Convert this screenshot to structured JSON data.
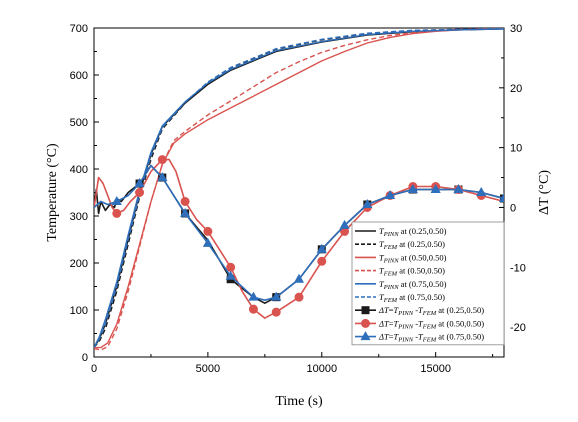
{
  "chart_data": {
    "type": "line",
    "xlabel": "Time (s)",
    "ylabel_left": "Temperature (°C)",
    "ylabel_right": "ΔT (°C)",
    "xlim": [
      0,
      18000
    ],
    "ylim_left": [
      0,
      700
    ],
    "ylim_right": [
      -25,
      30
    ],
    "x_ticks": [
      0,
      5000,
      10000,
      15000
    ],
    "y_ticks_left": [
      0,
      100,
      200,
      300,
      400,
      500,
      600,
      700
    ],
    "y_ticks_right": [
      -20,
      -10,
      0,
      10,
      20,
      30
    ],
    "legend_position": "bottom-right",
    "colors": {
      "black": "#1a1a1a",
      "red": "#d9534f",
      "blue": "#2f6eba"
    },
    "series": [
      {
        "name": "T_PINN at (0.25,0.50)",
        "legend_label": "at (0.25,0.50)",
        "sym": "PINN",
        "axis": "left",
        "color": "#1a1a1a",
        "style": "solid",
        "marker": "none",
        "x": [
          0,
          250,
          500,
          1000,
          1500,
          2000,
          2500,
          3000,
          4000,
          5000,
          6000,
          8000,
          10000,
          12000,
          14000,
          16000,
          18000
        ],
        "y": [
          20,
          40,
          70,
          150,
          250,
          350,
          430,
          490,
          540,
          580,
          610,
          650,
          670,
          685,
          692,
          696,
          698
        ]
      },
      {
        "name": "T_FEM at (0.25,0.50)",
        "legend_label": "at (0.25,0.50)",
        "sym": "FEM",
        "axis": "left",
        "color": "#1a1a1a",
        "style": "dash",
        "marker": "none",
        "x": [
          0,
          250,
          500,
          1000,
          1500,
          2000,
          2500,
          3000,
          4000,
          5000,
          6000,
          8000,
          10000,
          12000,
          14000,
          16000,
          18000
        ],
        "y": [
          20,
          35,
          60,
          140,
          240,
          340,
          420,
          485,
          540,
          585,
          615,
          655,
          675,
          688,
          694,
          697,
          699
        ]
      },
      {
        "name": "T_PINN at (0.50,0.50)",
        "legend_label": "at (0.50,0.50)",
        "sym": "PINN",
        "axis": "left",
        "color": "#d9534f",
        "style": "solid",
        "marker": "none",
        "x": [
          0,
          300,
          600,
          1000,
          1500,
          2000,
          2500,
          3000,
          3500,
          4000,
          5000,
          6000,
          7000,
          8000,
          9000,
          10000,
          11000,
          12000,
          13000,
          14000,
          15000,
          16000,
          17000,
          18000
        ],
        "y": [
          20,
          20,
          30,
          70,
          150,
          240,
          330,
          410,
          455,
          475,
          505,
          530,
          555,
          580,
          605,
          630,
          650,
          668,
          680,
          688,
          693,
          696,
          698,
          699
        ]
      },
      {
        "name": "T_FEM at (0.50,0.50)",
        "legend_label": "at (0.50,0.50)",
        "sym": "FEM",
        "axis": "left",
        "color": "#d9534f",
        "style": "dash",
        "marker": "none",
        "x": [
          0,
          300,
          600,
          1000,
          1500,
          2000,
          2500,
          3000,
          3500,
          4000,
          5000,
          6000,
          7000,
          8000,
          9000,
          10000,
          11000,
          12000,
          13000,
          14000,
          15000,
          16000,
          17000,
          18000
        ],
        "y": [
          18,
          15,
          22,
          60,
          140,
          235,
          330,
          410,
          460,
          480,
          515,
          545,
          575,
          605,
          628,
          648,
          663,
          675,
          684,
          690,
          694,
          697,
          698,
          699
        ]
      },
      {
        "name": "T_PINN at (0.75,0.50)",
        "legend_label": "at (0.75,0.50)",
        "sym": "PINN",
        "axis": "left",
        "color": "#2f6eba",
        "style": "solid",
        "marker": "none",
        "x": [
          0,
          250,
          500,
          1000,
          1500,
          2000,
          2500,
          3000,
          4000,
          5000,
          6000,
          8000,
          10000,
          12000,
          14000,
          16000,
          18000
        ],
        "y": [
          20,
          45,
          80,
          160,
          260,
          355,
          435,
          492,
          543,
          583,
          612,
          652,
          671,
          686,
          693,
          696,
          698
        ]
      },
      {
        "name": "T_FEM at (0.75,0.50)",
        "legend_label": "at (0.75,0.50)",
        "sym": "FEM",
        "axis": "left",
        "color": "#2f6eba",
        "style": "dash",
        "marker": "none",
        "x": [
          0,
          250,
          500,
          1000,
          1500,
          2000,
          2500,
          3000,
          4000,
          5000,
          6000,
          8000,
          10000,
          12000,
          14000,
          16000,
          18000
        ],
        "y": [
          20,
          40,
          70,
          150,
          250,
          345,
          428,
          488,
          542,
          585,
          616,
          656,
          676,
          689,
          695,
          697,
          699
        ]
      },
      {
        "name": "ΔT=T_PINN-T_FEM at (0.25,0.50)",
        "legend_label": "at (0.25,0.50)",
        "sym": "DT",
        "axis": "right",
        "color": "#1a1a1a",
        "style": "solid",
        "marker": "square",
        "x": [
          0,
          100,
          200,
          300,
          500,
          700,
          900,
          1000,
          1200,
          1500,
          2000,
          2500,
          3000,
          4000,
          5000,
          6000,
          7000,
          7500,
          8000,
          9000,
          10000,
          11000,
          12000,
          13000,
          14000,
          15000,
          16000,
          17000,
          18000
        ],
        "y": [
          0,
          3,
          -1,
          1,
          -0.5,
          0.5,
          0,
          1.5,
          1,
          2.5,
          4,
          7,
          5,
          -1,
          -5.5,
          -12,
          -15,
          -16,
          -15,
          -12,
          -7,
          -3,
          0.5,
          2,
          3,
          3,
          3,
          2.5,
          1.5
        ],
        "marker_x": [
          2000,
          3000,
          4000,
          6000,
          8000,
          10000,
          12000,
          14000,
          16000,
          18000
        ],
        "marker_y": [
          4,
          5,
          -1,
          -12,
          -15,
          -7,
          0.5,
          3,
          3,
          1.5
        ]
      },
      {
        "name": "ΔT=T_PINN-T_FEM at (0.50,0.50)",
        "legend_label": "at (0.50,0.50)",
        "sym": "DT",
        "axis": "right",
        "color": "#d9534f",
        "style": "solid",
        "marker": "circle",
        "x": [
          0,
          200,
          400,
          600,
          800,
          1000,
          1300,
          1600,
          2000,
          2500,
          3000,
          3300,
          3600,
          4000,
          4500,
          5000,
          5500,
          6000,
          6500,
          7000,
          7500,
          8000,
          9000,
          10000,
          11000,
          12000,
          13000,
          14000,
          15000,
          16000,
          17000,
          18000
        ],
        "y": [
          0,
          5,
          4,
          2,
          0,
          -1,
          -0.5,
          1,
          2.5,
          6,
          8,
          8,
          6,
          1,
          -2,
          -4,
          -7,
          -10,
          -14,
          -17,
          -18.5,
          -17.5,
          -15,
          -9,
          -4,
          0,
          2,
          3.5,
          3.5,
          3,
          2,
          1
        ],
        "marker_x": [
          1000,
          2000,
          3000,
          4000,
          5000,
          6000,
          7000,
          8000,
          9000,
          10000,
          11000,
          12000,
          13000,
          14000,
          15000,
          16000,
          17000
        ],
        "marker_y": [
          -1,
          2.5,
          8,
          1,
          -4,
          -10,
          -17,
          -17.5,
          -15,
          -9,
          -4,
          0,
          2,
          3.5,
          3.5,
          3,
          2
        ]
      },
      {
        "name": "ΔT=T_PINN-T_FEM at (0.75,0.50)",
        "legend_label": "at (0.75,0.50)",
        "sym": "DT",
        "axis": "right",
        "color": "#2f6eba",
        "style": "solid",
        "marker": "triangle",
        "x": [
          0,
          300,
          600,
          1000,
          1500,
          2000,
          2500,
          3000,
          4000,
          5000,
          6000,
          7000,
          7500,
          8000,
          9000,
          10000,
          11000,
          12000,
          13000,
          14000,
          15000,
          16000,
          17000,
          18000
        ],
        "y": [
          0,
          1,
          0.5,
          1,
          2,
          4,
          7,
          5,
          -1,
          -6,
          -11.5,
          -15,
          -15.5,
          -15,
          -12,
          -7,
          -3,
          0.5,
          2,
          3,
          3,
          3,
          2.5,
          1.5
        ],
        "marker_x": [
          1000,
          2000,
          3000,
          4000,
          5000,
          6000,
          7000,
          8000,
          9000,
          10000,
          11000,
          12000,
          13000,
          14000,
          15000,
          16000,
          17000,
          18000
        ],
        "marker_y": [
          1,
          4,
          5,
          -1,
          -6,
          -11.5,
          -15,
          -15,
          -12,
          -7,
          -3,
          0.5,
          2,
          3,
          3,
          3,
          2.5,
          1.5
        ]
      }
    ]
  }
}
